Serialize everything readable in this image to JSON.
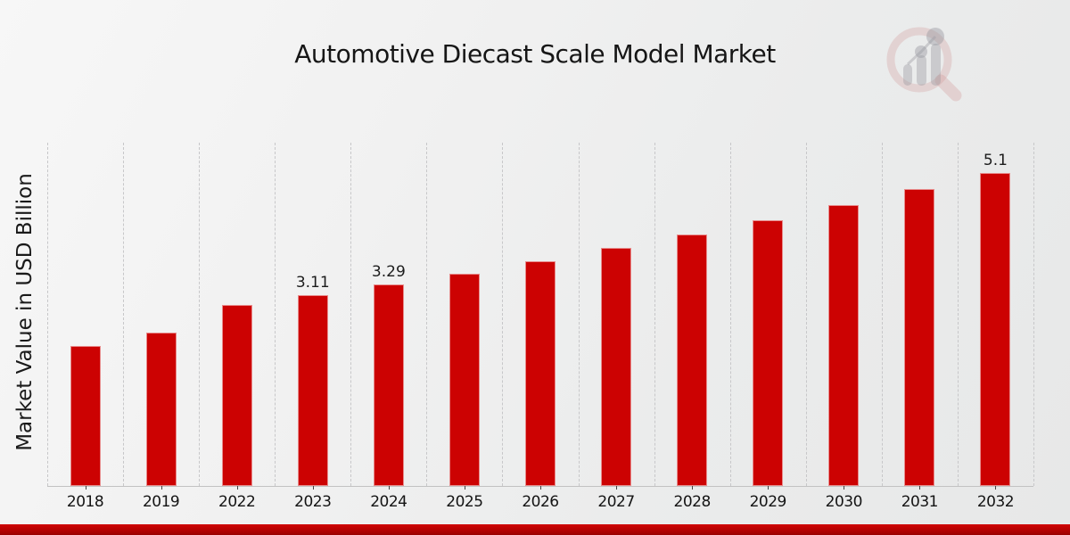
{
  "page": {
    "bottom_stripe_color_top": "#d00404",
    "bottom_stripe_color_bottom": "#960101"
  },
  "logo": {
    "icon": "magnifier-bar-chart-logo",
    "ring_color": "#dfb9b9",
    "element_color": "#b4b4ba"
  },
  "chart_data": {
    "type": "bar",
    "title": "Automotive Diecast Scale Model Market",
    "ylabel": "Market Value in USD Billion",
    "xlabel": "",
    "categories": [
      "2018",
      "2019",
      "2022",
      "2023",
      "2024",
      "2025",
      "2026",
      "2027",
      "2028",
      "2029",
      "2030",
      "2031",
      "2032"
    ],
    "values": [
      2.29,
      2.5,
      2.95,
      3.11,
      3.29,
      3.46,
      3.66,
      3.88,
      4.1,
      4.33,
      4.58,
      4.84,
      5.1
    ],
    "data_labels": [
      "",
      "",
      "",
      "3.11",
      "3.29",
      "",
      "",
      "",
      "",
      "",
      "",
      "",
      "5.1"
    ],
    "ylim": [
      0,
      5.6
    ],
    "bar_color": "#cc0202",
    "gridline_color": "#c7c7c9",
    "grid": "vertical-dashed",
    "legend": "none"
  }
}
